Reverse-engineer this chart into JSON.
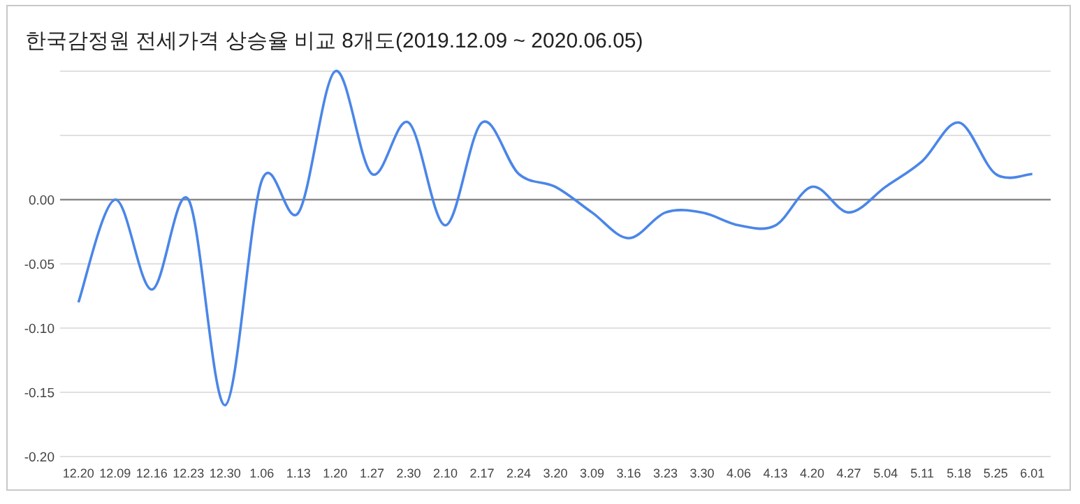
{
  "chart_data": {
    "type": "line",
    "title": "한국감정원 전세가격 상승율 비교 8개도(2019.12.09 ~ 2020.06.05)",
    "categories": [
      "12.20",
      "12.09",
      "12.16",
      "12.23",
      "12.30",
      "1.06",
      "1.13",
      "1.20",
      "1.27",
      "2.30",
      "2.10",
      "2.17",
      "2.24",
      "3.20",
      "3.09",
      "3.16",
      "3.23",
      "3.30",
      "4.06",
      "4.13",
      "4.20",
      "4.27",
      "5.04",
      "5.11",
      "5.18",
      "5.25",
      "6.01"
    ],
    "series": [
      {
        "color": "#4a86e8",
        "values": [
          -0.08,
          0.0,
          -0.07,
          0.0,
          -0.16,
          0.015,
          -0.01,
          0.1,
          0.02,
          0.06,
          -0.02,
          0.06,
          0.02,
          0.01,
          -0.01,
          -0.03,
          -0.01,
          -0.01,
          -0.02,
          -0.02,
          0.01,
          -0.01,
          0.01,
          0.03,
          0.06,
          0.02,
          0.02
        ]
      }
    ],
    "ylim": [
      -0.2,
      0.1
    ],
    "yticks": [
      {
        "value": -0.2,
        "label": "-0.20"
      },
      {
        "value": -0.15,
        "label": "-0.15"
      },
      {
        "value": -0.1,
        "label": "-0.10"
      },
      {
        "value": -0.05,
        "label": "-0.05"
      },
      {
        "value": 0,
        "label": "0.00"
      },
      {
        "value": 0.05,
        "label": null
      },
      {
        "value": 0.1,
        "label": null
      }
    ],
    "grid": "y",
    "marker": "none",
    "line_style": "solid"
  }
}
